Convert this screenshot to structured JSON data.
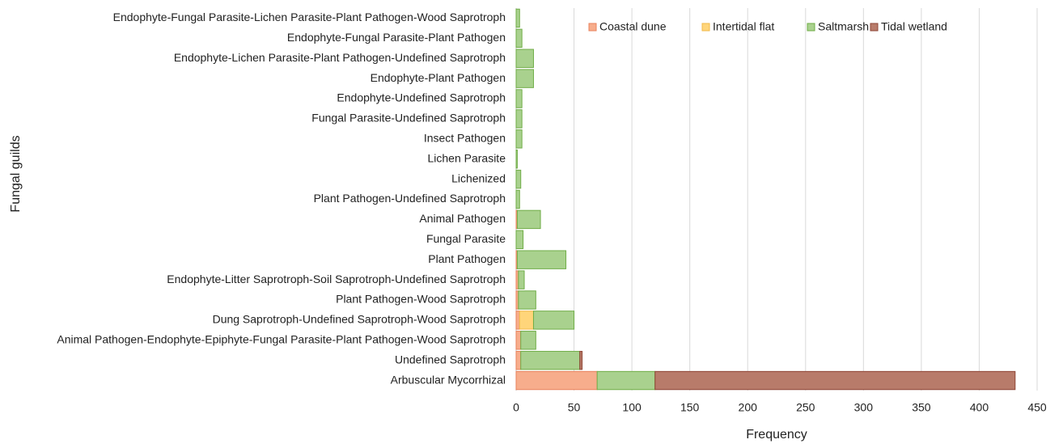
{
  "chart_data": {
    "type": "stacked_barh",
    "xlabel": "Frequency",
    "ylabel": "Fungal guilds",
    "categories": [
      "Endophyte-Fungal Parasite-Lichen Parasite-Plant Pathogen-Wood Saprotroph",
      "Endophyte-Fungal Parasite-Plant Pathogen",
      "Endophyte-Lichen Parasite-Plant Pathogen-Undefined Saprotroph",
      "Endophyte-Plant Pathogen",
      "Endophyte-Undefined Saprotroph",
      "Fungal Parasite-Undefined Saprotroph",
      "Insect Pathogen",
      "Lichen Parasite",
      "Lichenized",
      "Plant Pathogen-Undefined Saprotroph",
      "Animal Pathogen",
      "Fungal Parasite",
      "Plant Pathogen",
      "Endophyte-Litter Saprotroph-Soil Saprotroph-Undefined Saprotroph",
      "Plant Pathogen-Wood Saprotroph",
      "Dung Saprotroph-Undefined Saprotroph-Wood Saprotroph",
      "Animal Pathogen-Endophyte-Epiphyte-Fungal Parasite-Plant Pathogen-Wood Saprotroph",
      "Undefined Saprotroph",
      "Arbuscular Mycorrhizal"
    ],
    "series": [
      {
        "name": "Coastal dune",
        "color": "#f7ad8c",
        "edge": "#e8825c",
        "values": [
          0,
          0,
          0,
          0,
          0,
          0,
          0,
          0,
          0,
          0,
          1,
          0,
          1,
          2,
          2,
          3,
          4,
          4,
          70
        ]
      },
      {
        "name": "Intertidal flat",
        "color": "#ffd57a",
        "edge": "#f2b94a",
        "values": [
          0,
          0,
          0,
          0,
          0,
          0,
          0,
          0,
          0,
          0,
          0,
          0,
          0,
          0,
          0,
          12,
          0,
          0,
          0
        ]
      },
      {
        "name": "Saltmarsh",
        "color": "#a9d18e",
        "edge": "#70ad47",
        "values": [
          3,
          5,
          15,
          15,
          5,
          5,
          5,
          1,
          4,
          3,
          20,
          6,
          42,
          5,
          15,
          35,
          13,
          51,
          50
        ]
      },
      {
        "name": "Tidal wetland",
        "color": "#b87b6a",
        "edge": "#8e4535",
        "values": [
          0,
          0,
          0,
          0,
          0,
          0,
          0,
          0,
          0,
          0,
          0,
          0,
          0,
          0,
          0,
          0,
          0,
          2,
          311
        ]
      }
    ],
    "xlim": [
      0,
      450
    ],
    "xticks": [
      0,
      50,
      100,
      150,
      200,
      250,
      300,
      350,
      400,
      450
    ],
    "grid": true,
    "legend": "top"
  }
}
